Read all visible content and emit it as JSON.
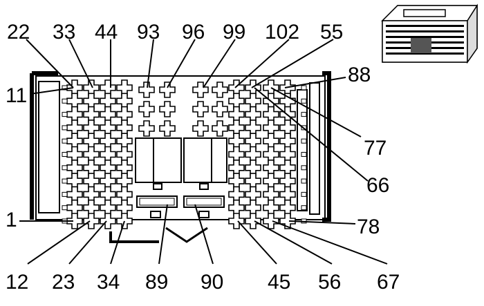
{
  "diagram": {
    "type": "connector-pinout",
    "labels": {
      "l22": "22",
      "l33": "33",
      "l44": "44",
      "l93": "93",
      "l96": "96",
      "l99": "99",
      "l102": "102",
      "l55": "55",
      "l88": "88",
      "l11": "11",
      "l77": "77",
      "l66": "66",
      "l1": "1",
      "l78": "78",
      "l12": "12",
      "l23": "23",
      "l34": "34",
      "l89": "89",
      "l90": "90",
      "l45": "45",
      "l56": "56",
      "l67": "67"
    }
  }
}
